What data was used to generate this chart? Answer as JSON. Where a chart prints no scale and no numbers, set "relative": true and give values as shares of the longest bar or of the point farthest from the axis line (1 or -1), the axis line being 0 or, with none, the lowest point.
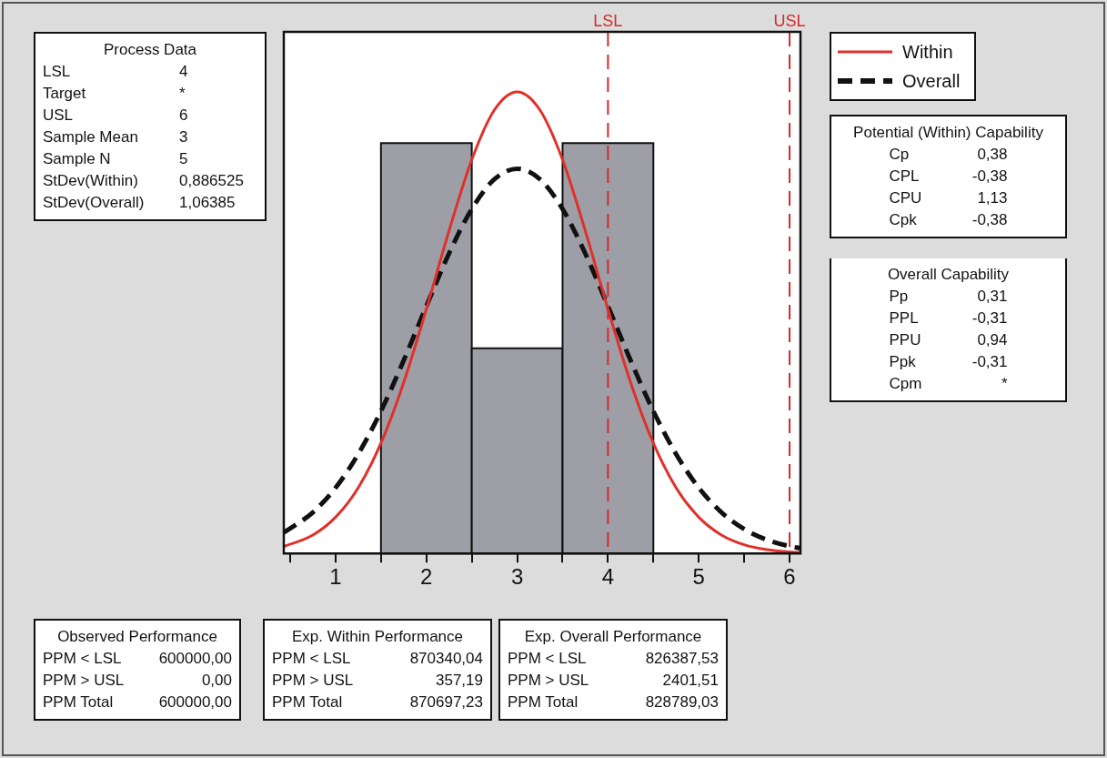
{
  "chart_data": {
    "type": "histogram",
    "relative": true,
    "bins": [
      1.5,
      2.5,
      3.5,
      4.5
    ],
    "values": [
      0.8889,
      0.4444,
      0.8889
    ],
    "color": "#9e9ea6",
    "series": [
      {
        "type": "line",
        "name": "Within",
        "color": "#e0302a",
        "line_style": "solid",
        "x": [
          0.43,
          0.75,
          1,
          1.25,
          1.5,
          1.75,
          2,
          2.25,
          2.5,
          2.75,
          3,
          3.25,
          3.5,
          3.75,
          4,
          4.25,
          4.5,
          4.75,
          5,
          5.25,
          5.5,
          5.75,
          6,
          6.12
        ],
        "values": [
          0.0149,
          0.0399,
          0.0785,
          0.1425,
          0.239,
          0.3701,
          0.5293,
          0.6991,
          0.853,
          0.961,
          1,
          0.961,
          0.853,
          0.6991,
          0.5293,
          0.3701,
          0.239,
          0.1425,
          0.0785,
          0.0399,
          0.0188,
          0.0082,
          0.0033,
          0.002
        ]
      },
      {
        "type": "line",
        "name": "Overall",
        "color": "#111111",
        "line_style": "dashed",
        "x": [
          0.43,
          0.75,
          1,
          1.25,
          1.5,
          1.75,
          2,
          2.25,
          2.5,
          2.75,
          3,
          3.25,
          3.5,
          3.75,
          4,
          4.25,
          4.5,
          4.75,
          5,
          5.25,
          5.5,
          5.75,
          6,
          6.12
        ],
        "values": [
          0.0451,
          0.089,
          0.1423,
          0.2154,
          0.3084,
          0.4179,
          0.5357,
          0.65,
          0.7462,
          0.8107,
          0.8333,
          0.8107,
          0.7462,
          0.65,
          0.5357,
          0.4179,
          0.3084,
          0.2154,
          0.1423,
          0.089,
          0.0527,
          0.0295,
          0.0156,
          0.0113
        ]
      }
    ],
    "xlim": [
      0.43,
      6.12
    ],
    "xticks": [
      {
        "value": 0.5,
        "label": null
      },
      1,
      {
        "value": 1.5,
        "label": null
      },
      2,
      {
        "value": 2.5,
        "label": null
      },
      3,
      {
        "value": 3.5,
        "label": null
      },
      4,
      {
        "value": 4.5,
        "label": null
      },
      5,
      {
        "value": 5.5,
        "label": null
      },
      6
    ],
    "ref_lines": [
      {
        "axis": "x",
        "value": 4,
        "label": "LSL",
        "color": "#d42a2a",
        "line_style": "dashed"
      },
      {
        "axis": "x",
        "value": 6,
        "label": "USL",
        "color": "#d42a2a",
        "line_style": "dashed"
      }
    ],
    "legend": "top right",
    "annotations": [
      "Process Data\nLSL\t4\nTarget\t*\nUSL\t6\nSample Mean\t3\nSample N\t5\nStDev(Within)\t0,886525\nStDev(Overall)\t1,06385",
      "Potential (Within) Capability\nCp\t0,38\nCPL\t-0,38\nCPU\t1,13\nCpk\t-0,38",
      "Overall Capability\nPp\t0,31\nPPL\t-0,31\nPPU\t0,94\nPpk\t-0,31\nCpm\t*",
      "Observed Performance\nPPM < LSL\t600000,00\nPPM > USL\t0,00\nPPM Total\t600000,00",
      "Exp. Within Performance\nPPM < LSL\t870340,04\nPPM > USL\t357,19\nPPM Total\t870697,23",
      "Exp. Overall Performance\nPPM < LSL\t826387,53\nPPM > USL\t2401,51\nPPM Total\t828789,03"
    ]
  }
}
